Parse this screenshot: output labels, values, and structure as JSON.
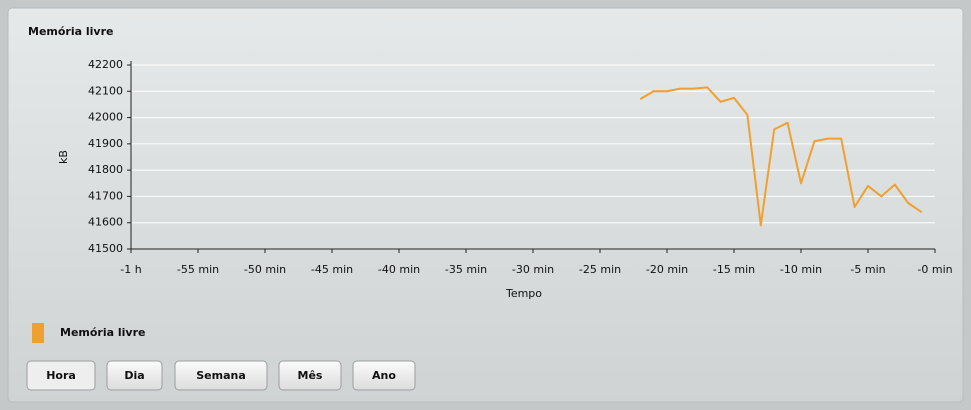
{
  "chart_data": {
    "type": "line",
    "title": "Memória livre",
    "xlabel": "Tempo",
    "ylabel": "kB",
    "x": [
      -22,
      -21,
      -20,
      -19,
      -18,
      -17,
      -16,
      -15,
      -14,
      -13,
      -12,
      -11,
      -10,
      -9,
      -8,
      -7,
      -6,
      -5,
      -4,
      -3,
      -2,
      -1
    ],
    "series": [
      {
        "name": "Memória livre",
        "color": "#f0a030",
        "values": [
          42070,
          42100,
          42100,
          42110,
          42110,
          42115,
          42060,
          42075,
          42010,
          41590,
          41955,
          41980,
          41750,
          41910,
          41920,
          41920,
          41660,
          41740,
          41700,
          41745,
          41675,
          41640
        ]
      }
    ],
    "xlim": [
      -60,
      0
    ],
    "xticks": [
      {
        "value": -60,
        "label": "-1 h"
      },
      {
        "value": -55,
        "label": "-55 min"
      },
      {
        "value": -50,
        "label": "-50 min"
      },
      {
        "value": -45,
        "label": "-45 min"
      },
      {
        "value": -40,
        "label": "-40 min"
      },
      {
        "value": -35,
        "label": "-35 min"
      },
      {
        "value": -30,
        "label": "-30 min"
      },
      {
        "value": -25,
        "label": "-25 min"
      },
      {
        "value": -20,
        "label": "-20 min"
      },
      {
        "value": -15,
        "label": "-15 min"
      },
      {
        "value": -10,
        "label": "-10 min"
      },
      {
        "value": -5,
        "label": "-5 min"
      },
      {
        "value": 0,
        "label": "-0 min"
      }
    ],
    "ylim": [
      41500,
      42200
    ],
    "yticks": [
      41500,
      41600,
      41700,
      41800,
      41900,
      42000,
      42100,
      42200
    ],
    "grid": true
  },
  "buttons": [
    "Hora",
    "Dia",
    "Semana",
    "Mês",
    "Ano"
  ]
}
